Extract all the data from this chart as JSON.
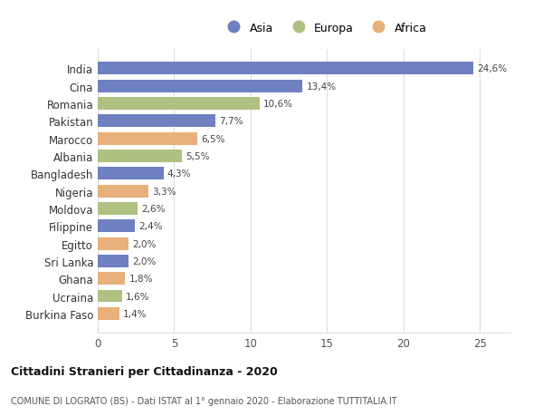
{
  "countries": [
    "India",
    "Cina",
    "Romania",
    "Pakistan",
    "Marocco",
    "Albania",
    "Bangladesh",
    "Nigeria",
    "Moldova",
    "Filippine",
    "Egitto",
    "Sri Lanka",
    "Ghana",
    "Ucraina",
    "Burkina Faso"
  ],
  "values": [
    24.6,
    13.4,
    10.6,
    7.7,
    6.5,
    5.5,
    4.3,
    3.3,
    2.6,
    2.4,
    2.0,
    2.0,
    1.8,
    1.6,
    1.4
  ],
  "labels": [
    "24,6%",
    "13,4%",
    "10,6%",
    "7,7%",
    "6,5%",
    "5,5%",
    "4,3%",
    "3,3%",
    "2,6%",
    "2,4%",
    "2,0%",
    "2,0%",
    "1,8%",
    "1,6%",
    "1,4%"
  ],
  "continents": [
    "Asia",
    "Asia",
    "Europa",
    "Asia",
    "Africa",
    "Europa",
    "Asia",
    "Africa",
    "Europa",
    "Asia",
    "Africa",
    "Asia",
    "Africa",
    "Europa",
    "Africa"
  ],
  "colors": {
    "Asia": "#6e80c0",
    "Europa": "#aec180",
    "Africa": "#e8b07a"
  },
  "legend_labels": [
    "Asia",
    "Europa",
    "Africa"
  ],
  "legend_colors": [
    "#6e80c0",
    "#aec180",
    "#e8b07a"
  ],
  "title1": "Cittadini Stranieri per Cittadinanza - 2020",
  "title2": "COMUNE DI LOGRATO (BS) - Dati ISTAT al 1° gennaio 2020 - Elaborazione TUTTITALIA.IT",
  "xlim": [
    0,
    27
  ],
  "xticks": [
    0,
    5,
    10,
    15,
    20,
    25
  ],
  "background_color": "#ffffff",
  "grid_color": "#dddddd"
}
